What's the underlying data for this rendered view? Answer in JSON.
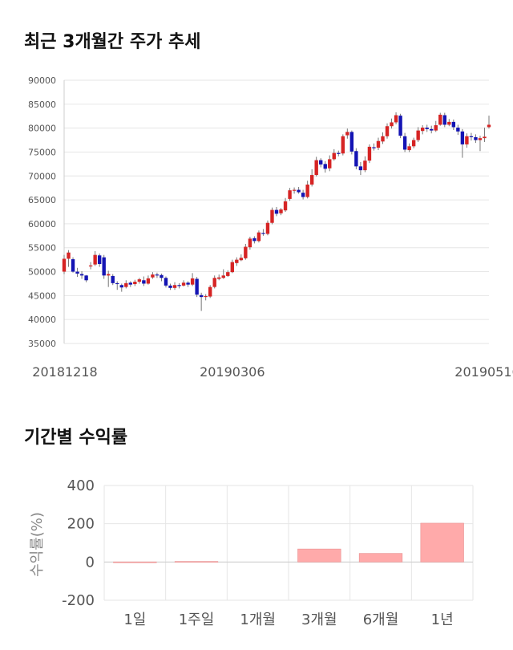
{
  "titles": {
    "stock_chart": "최근 3개월간 주가 추세",
    "returns_chart": "기간별 수익률"
  },
  "colors": {
    "up_candle": "#d62424",
    "down_candle": "#1414b4",
    "return_bar": "#ffaaaa",
    "grid": "#e6e6e6"
  },
  "chart_data": [
    {
      "type": "candlestick",
      "title": "최근 3개월간 주가 추세",
      "ylim": [
        35000,
        90000
      ],
      "yticks": [
        35000,
        40000,
        45000,
        50000,
        55000,
        60000,
        65000,
        70000,
        75000,
        80000,
        85000,
        90000
      ],
      "xticks": [
        "20181218",
        "20190306",
        "20190516"
      ],
      "grid": "horizontal",
      "candles": [
        [
          50000,
          52700,
          53500,
          49500
        ],
        [
          52700,
          54000,
          54500,
          51000
        ],
        [
          52600,
          50000,
          53000,
          49800
        ],
        [
          50000,
          49600,
          50800,
          48900
        ],
        [
          49500,
          49200,
          50100,
          48500
        ],
        [
          49200,
          48200,
          49300,
          47800
        ],
        [
          51300,
          51300,
          52000,
          50500
        ],
        [
          51500,
          53500,
          54300,
          51200
        ],
        [
          53400,
          51600,
          53800,
          51000
        ],
        [
          53000,
          49200,
          53500,
          48500
        ],
        [
          49200,
          49500,
          50200,
          46800
        ],
        [
          49100,
          47600,
          49500,
          47200
        ],
        [
          47600,
          47500,
          48000,
          46200
        ],
        [
          47200,
          46700,
          47500,
          45800
        ],
        [
          46800,
          47600,
          48200,
          46500
        ],
        [
          47700,
          47300,
          48000,
          46800
        ],
        [
          47400,
          47900,
          48300,
          47000
        ],
        [
          47900,
          48400,
          48700,
          47500
        ],
        [
          48200,
          47500,
          49000,
          47000
        ],
        [
          47500,
          48600,
          49200,
          47300
        ],
        [
          48800,
          49400,
          49900,
          48500
        ],
        [
          49400,
          49300,
          49800,
          48700
        ],
        [
          49300,
          48700,
          49600,
          48000
        ],
        [
          48700,
          47100,
          49000,
          46700
        ],
        [
          47100,
          46600,
          47500,
          46200
        ],
        [
          46600,
          47200,
          47800,
          46200
        ],
        [
          47200,
          47100,
          47600,
          46500
        ],
        [
          47100,
          47700,
          48200,
          46900
        ],
        [
          47700,
          47300,
          48000,
          46800
        ],
        [
          47300,
          48600,
          49700,
          47000
        ],
        [
          48500,
          45200,
          48900,
          44700
        ],
        [
          45100,
          44700,
          45600,
          41800
        ],
        [
          44700,
          44900,
          45300,
          44000
        ],
        [
          44800,
          46800,
          47200,
          44500
        ],
        [
          46800,
          48700,
          49200,
          46500
        ],
        [
          48500,
          48800,
          49400,
          48200
        ],
        [
          48700,
          49200,
          50500,
          48500
        ],
        [
          49100,
          49900,
          50300,
          48900
        ],
        [
          49900,
          52000,
          52500,
          49700
        ],
        [
          51800,
          52500,
          53000,
          51200
        ],
        [
          52400,
          52900,
          53600,
          52200
        ],
        [
          52800,
          55200,
          55800,
          52500
        ],
        [
          55100,
          56900,
          57300,
          54600
        ],
        [
          57000,
          56400,
          57400,
          55900
        ],
        [
          56400,
          58200,
          58600,
          56100
        ],
        [
          58100,
          58000,
          58900,
          57500
        ],
        [
          57900,
          60200,
          60700,
          57600
        ],
        [
          60200,
          62900,
          63400,
          59900
        ],
        [
          62900,
          62100,
          63500,
          61600
        ],
        [
          62200,
          63000,
          63300,
          61800
        ],
        [
          62800,
          64700,
          65400,
          62500
        ],
        [
          65200,
          67000,
          67500,
          64800
        ],
        [
          67000,
          67100,
          67600,
          66300
        ],
        [
          67100,
          66600,
          67700,
          66300
        ],
        [
          66500,
          65600,
          67100,
          65100
        ],
        [
          65600,
          68200,
          69000,
          65300
        ],
        [
          68200,
          70200,
          71400,
          67800
        ],
        [
          70200,
          73300,
          74000,
          69900
        ],
        [
          73300,
          72400,
          73700,
          71800
        ],
        [
          72500,
          71500,
          73100,
          70700
        ],
        [
          71600,
          73500,
          74300,
          71000
        ],
        [
          73500,
          74800,
          75600,
          73200
        ],
        [
          74800,
          74600,
          75300,
          74100
        ],
        [
          74700,
          78300,
          78700,
          74300
        ],
        [
          78500,
          79200,
          79900,
          77800
        ],
        [
          79200,
          75100,
          79500,
          74500
        ],
        [
          75200,
          72000,
          75800,
          71400
        ],
        [
          72000,
          71200,
          72900,
          70200
        ],
        [
          71200,
          73200,
          74100,
          70800
        ],
        [
          73200,
          76100,
          76600,
          72700
        ],
        [
          76000,
          75800,
          76800,
          75300
        ],
        [
          75900,
          77300,
          78000,
          75400
        ],
        [
          77200,
          78300,
          79100,
          76700
        ],
        [
          78300,
          80400,
          81000,
          77800
        ],
        [
          80400,
          81200,
          82000,
          79900
        ],
        [
          81200,
          82700,
          83300,
          80800
        ],
        [
          82600,
          78400,
          83000,
          77900
        ],
        [
          78300,
          75500,
          79000,
          75000
        ],
        [
          75400,
          76200,
          76800,
          75000
        ],
        [
          76200,
          77500,
          78000,
          75800
        ],
        [
          77500,
          79500,
          80200,
          77100
        ],
        [
          79400,
          80100,
          80600,
          78700
        ],
        [
          80100,
          79800,
          80700,
          79200
        ],
        [
          79800,
          79500,
          80500,
          78900
        ],
        [
          79500,
          80600,
          81500,
          79200
        ],
        [
          80700,
          82800,
          83200,
          80500
        ],
        [
          82700,
          80700,
          83200,
          80200
        ],
        [
          80700,
          81300,
          81900,
          80400
        ],
        [
          81300,
          80200,
          81800,
          79600
        ],
        [
          80100,
          79300,
          80700,
          78600
        ],
        [
          79300,
          76600,
          79800,
          73800
        ],
        [
          76600,
          78300,
          78900,
          75900
        ],
        [
          78300,
          78100,
          79000,
          77400
        ],
        [
          78100,
          77500,
          78700,
          76900
        ],
        [
          77500,
          77900,
          78400,
          75200
        ],
        [
          77900,
          78200,
          80100,
          77100
        ],
        [
          80200,
          80700,
          82600,
          79900
        ]
      ]
    },
    {
      "type": "bar",
      "title": "기간별 수익률",
      "ylabel": "수익률(%)",
      "ylim": [
        -200,
        400
      ],
      "yticks": [
        -200,
        0,
        200,
        400
      ],
      "categories": [
        "1일",
        "1주일",
        "1개월",
        "3개월",
        "6개월",
        "1년"
      ],
      "values": [
        0.6,
        3,
        0,
        68,
        45,
        203
      ],
      "grid": "both"
    }
  ]
}
